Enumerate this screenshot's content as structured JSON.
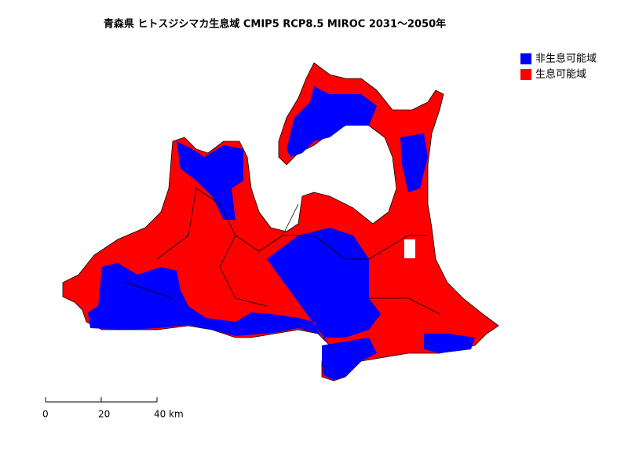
{
  "title": "青森県 ヒトスジシマカ生息域 CMIP5 RCP8.5 MIROC 2031～2050年",
  "legend": [
    {
      "label": "非生息可能域",
      "color": "#0000ff"
    },
    {
      "label": "生息可能域",
      "color": "#ff0000"
    }
  ],
  "scale_bar": {
    "ticks": [
      0,
      20,
      {
        "value": 40,
        "label": "40 km"
      }
    ]
  }
}
